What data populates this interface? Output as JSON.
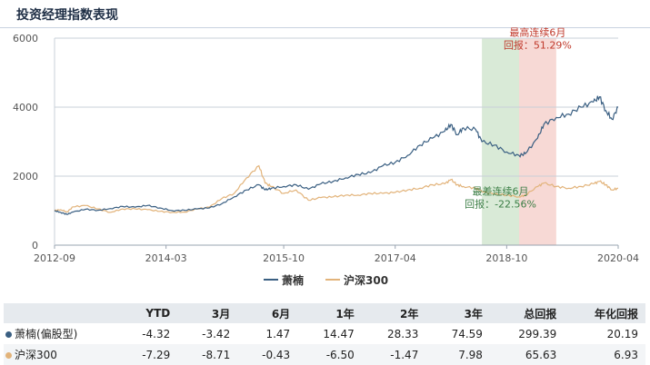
{
  "title": "投资经理指数表现",
  "chart_data": {
    "type": "line",
    "ylim": [
      0,
      6000
    ],
    "y_ticks": [
      "0",
      "2000",
      "4000",
      "6000"
    ],
    "x_ticks": [
      "2012-09",
      "2014-03",
      "2015-10",
      "2017-04",
      "2018-10",
      "2020-04"
    ],
    "x_range": [
      "2012-09",
      "2020-04"
    ],
    "grid": true,
    "legend_position": "bottom",
    "series": [
      {
        "name": "萧楠",
        "color": "#3a5f82",
        "points": [
          [
            "2012-09",
            1000
          ],
          [
            "2012-10",
            950
          ],
          [
            "2012-11",
            890
          ],
          [
            "2012-12",
            960
          ],
          [
            "2013-02",
            1040
          ],
          [
            "2013-04",
            1010
          ],
          [
            "2013-06",
            1060
          ],
          [
            "2013-08",
            1120
          ],
          [
            "2013-10",
            1100
          ],
          [
            "2013-12",
            1150
          ],
          [
            "2014-02",
            1080
          ],
          [
            "2014-04",
            1000
          ],
          [
            "2014-06",
            1010
          ],
          [
            "2014-08",
            1050
          ],
          [
            "2014-10",
            1080
          ],
          [
            "2014-12",
            1200
          ],
          [
            "2015-02",
            1400
          ],
          [
            "2015-04",
            1600
          ],
          [
            "2015-06",
            1750
          ],
          [
            "2015-07",
            1600
          ],
          [
            "2015-08",
            1650
          ],
          [
            "2015-10",
            1700
          ],
          [
            "2015-12",
            1750
          ],
          [
            "2016-02",
            1620
          ],
          [
            "2016-04",
            1780
          ],
          [
            "2016-06",
            1850
          ],
          [
            "2016-08",
            1950
          ],
          [
            "2016-10",
            2050
          ],
          [
            "2016-12",
            2100
          ],
          [
            "2017-02",
            2300
          ],
          [
            "2017-04",
            2400
          ],
          [
            "2017-06",
            2600
          ],
          [
            "2017-08",
            2900
          ],
          [
            "2017-10",
            3100
          ],
          [
            "2017-12",
            3300
          ],
          [
            "2018-01",
            3500
          ],
          [
            "2018-02",
            3200
          ],
          [
            "2018-03",
            3400
          ],
          [
            "2018-05",
            3350
          ],
          [
            "2018-06",
            3000
          ],
          [
            "2018-08",
            2900
          ],
          [
            "2018-10",
            2700
          ],
          [
            "2018-12",
            2600
          ],
          [
            "2019-01",
            2650
          ],
          [
            "2019-03",
            3100
          ],
          [
            "2019-04",
            3500
          ],
          [
            "2019-06",
            3700
          ],
          [
            "2019-08",
            3800
          ],
          [
            "2019-10",
            4000
          ],
          [
            "2019-12",
            4150
          ],
          [
            "2020-01",
            4300
          ],
          [
            "2020-02",
            3900
          ],
          [
            "2020-03",
            3650
          ],
          [
            "2020-04",
            4000
          ]
        ]
      },
      {
        "name": "沪深300",
        "color": "#e2b37a",
        "points": [
          [
            "2012-09",
            1000
          ],
          [
            "2012-10",
            1030
          ],
          [
            "2012-11",
            960
          ],
          [
            "2012-12",
            1110
          ],
          [
            "2013-02",
            1150
          ],
          [
            "2013-04",
            1050
          ],
          [
            "2013-06",
            950
          ],
          [
            "2013-08",
            1050
          ],
          [
            "2013-10",
            1050
          ],
          [
            "2013-12",
            1030
          ],
          [
            "2014-02",
            980
          ],
          [
            "2014-04",
            950
          ],
          [
            "2014-06",
            960
          ],
          [
            "2014-08",
            1050
          ],
          [
            "2014-10",
            1100
          ],
          [
            "2014-12",
            1350
          ],
          [
            "2015-02",
            1500
          ],
          [
            "2015-04",
            1950
          ],
          [
            "2015-06",
            2300
          ],
          [
            "2015-07",
            1800
          ],
          [
            "2015-08",
            1700
          ],
          [
            "2015-10",
            1500
          ],
          [
            "2015-12",
            1600
          ],
          [
            "2016-02",
            1300
          ],
          [
            "2016-04",
            1380
          ],
          [
            "2016-06",
            1400
          ],
          [
            "2016-08",
            1450
          ],
          [
            "2016-10",
            1450
          ],
          [
            "2016-12",
            1500
          ],
          [
            "2017-02",
            1500
          ],
          [
            "2017-04",
            1530
          ],
          [
            "2017-06",
            1600
          ],
          [
            "2017-08",
            1650
          ],
          [
            "2017-10",
            1750
          ],
          [
            "2017-12",
            1780
          ],
          [
            "2018-01",
            1900
          ],
          [
            "2018-02",
            1750
          ],
          [
            "2018-03",
            1700
          ],
          [
            "2018-05",
            1650
          ],
          [
            "2018-06",
            1550
          ],
          [
            "2018-08",
            1480
          ],
          [
            "2018-10",
            1450
          ],
          [
            "2018-12",
            1400
          ],
          [
            "2019-01",
            1450
          ],
          [
            "2019-03",
            1700
          ],
          [
            "2019-04",
            1800
          ],
          [
            "2019-06",
            1700
          ],
          [
            "2019-08",
            1650
          ],
          [
            "2019-10",
            1700
          ],
          [
            "2019-12",
            1780
          ],
          [
            "2020-01",
            1850
          ],
          [
            "2020-02",
            1750
          ],
          [
            "2020-03",
            1600
          ],
          [
            "2020-04",
            1650
          ]
        ]
      }
    ],
    "bands": [
      {
        "from": "2018-06",
        "to": "2018-12",
        "color": "#d9ead7"
      },
      {
        "from": "2018-12",
        "to": "2019-06",
        "color": "#f7d9d5"
      }
    ],
    "annotations": [
      {
        "lines": [
          "最高连续6月",
          "回报：51.29%"
        ],
        "color": "#c0392b",
        "x": "2019-03",
        "y": 5800
      },
      {
        "lines": [
          "最差连续6月",
          "回报：-22.56%"
        ],
        "color": "#3a7d44",
        "x": "2018-09",
        "y": 1200
      }
    ]
  },
  "legend": [
    {
      "name": "萧楠",
      "color": "#3a5f82"
    },
    {
      "name": "沪深300",
      "color": "#e2b37a"
    }
  ],
  "table": {
    "headers": [
      "",
      "YTD",
      "3月",
      "6月",
      "1年",
      "2年",
      "3年",
      "总回报",
      "年化回报"
    ],
    "rows": [
      {
        "name": "萧楠(偏股型)",
        "color": "#3a5f82",
        "values": [
          "-4.32",
          "-3.42",
          "1.47",
          "14.47",
          "28.33",
          "74.59",
          "299.39",
          "20.19"
        ]
      },
      {
        "name": "沪深300",
        "color": "#e2b37a",
        "values": [
          "-7.29",
          "-8.71",
          "-0.43",
          "-6.50",
          "-1.47",
          "7.98",
          "65.63",
          "6.93"
        ]
      }
    ]
  }
}
